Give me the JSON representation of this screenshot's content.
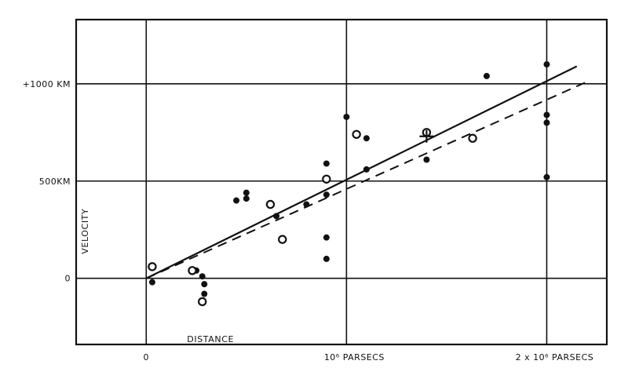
{
  "chart_data": {
    "type": "scatter",
    "title": "",
    "xlabel": "DISTANCE",
    "ylabel": "VELOCITY",
    "x_unit": "parsecs",
    "y_unit": "km/s",
    "xlim": [
      -350000,
      2300000
    ],
    "ylim": [
      -340000,
      1330000
    ],
    "ylim_km": [
      -340,
      1330
    ],
    "grid": true,
    "x_ticks": [
      {
        "value": 0,
        "label": "0"
      },
      {
        "value": 1000000,
        "label": "10⁶ PARSECS"
      },
      {
        "value": 2000000,
        "label": "2 x 10⁶ PARSECS"
      }
    ],
    "y_ticks": [
      {
        "value": 0,
        "label": "0"
      },
      {
        "value": 500,
        "label": "500KM"
      },
      {
        "value": 1000,
        "label": "+1000 KM"
      }
    ],
    "series": [
      {
        "marker": "filled-circle",
        "points": [
          [
            30000,
            -20
          ],
          [
            250000,
            40
          ],
          [
            280000,
            10
          ],
          [
            290000,
            -30
          ],
          [
            290000,
            -80
          ],
          [
            450000,
            400
          ],
          [
            500000,
            410
          ],
          [
            500000,
            440
          ],
          [
            650000,
            320
          ],
          [
            800000,
            380
          ],
          [
            900000,
            100
          ],
          [
            900000,
            210
          ],
          [
            900000,
            430
          ],
          [
            900000,
            590
          ],
          [
            1000000,
            830
          ],
          [
            1100000,
            720
          ],
          [
            1100000,
            560
          ],
          [
            1400000,
            610
          ],
          [
            1700000,
            1040
          ],
          [
            2000000,
            1100
          ],
          [
            2000000,
            840
          ],
          [
            2000000,
            800
          ],
          [
            2000000,
            520
          ]
        ]
      },
      {
        "marker": "open-circle",
        "points": [
          [
            30000,
            60
          ],
          [
            230000,
            40
          ],
          [
            280000,
            -120
          ],
          [
            620000,
            380
          ],
          [
            680000,
            200
          ],
          [
            900000,
            510
          ],
          [
            1050000,
            740
          ],
          [
            1400000,
            750
          ],
          [
            1630000,
            720
          ]
        ]
      },
      {
        "marker": "cross",
        "points": [
          [
            1400000,
            730
          ]
        ]
      }
    ],
    "fit_lines": [
      {
        "style": "solid",
        "points": [
          [
            0,
            0
          ],
          [
            2150000,
            1090
          ]
        ]
      },
      {
        "style": "dashed",
        "points": [
          [
            0,
            0
          ],
          [
            2200000,
            1010
          ]
        ]
      }
    ]
  }
}
